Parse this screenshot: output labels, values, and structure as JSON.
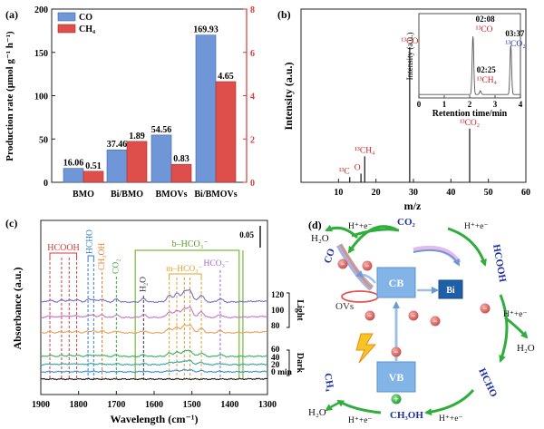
{
  "panels": {
    "a": {
      "label": "(a)"
    },
    "b": {
      "label": "(b)"
    },
    "c": {
      "label": "(c)"
    },
    "d": {
      "label": "(d)"
    }
  },
  "chart_data": [
    {
      "panel": "a",
      "type": "bar",
      "categories": [
        "BMO",
        "Bi/BMO",
        "BMOVs",
        "Bi/BMOVs"
      ],
      "series": [
        {
          "name": "CO",
          "axis": "left",
          "color": "#6f96d6",
          "values": [
            16.06,
            37.46,
            54.56,
            169.93
          ],
          "labels": [
            "16.06",
            "37.46",
            "54.56",
            "169.93"
          ]
        },
        {
          "name": "CH₄",
          "axis": "right",
          "color": "#de4f4c",
          "values": [
            0.51,
            1.89,
            0.83,
            4.65
          ],
          "labels": [
            "0.51",
            "1.89",
            "0.83",
            "4.65"
          ]
        }
      ],
      "ylabel": "Production rate (μmol g⁻¹ h⁻¹)",
      "ylim_left": [
        0,
        200
      ],
      "ylim_right": [
        0,
        8
      ],
      "yticks_left": [
        "0",
        "50",
        "100",
        "150",
        "200"
      ],
      "yticks_right": [
        "0",
        "2",
        "4",
        "6",
        "8"
      ],
      "legend_position": "top-left"
    },
    {
      "panel": "b",
      "type": "bar",
      "xlabel": "m/z",
      "ylabel": "Intensity (a.u.)",
      "xlim": [
        0,
        60
      ],
      "xticks": [
        "10",
        "20",
        "30",
        "40",
        "50",
        "60"
      ],
      "peaks": [
        {
          "x": 13,
          "h": 0.03,
          "label": "¹³C",
          "color": "#cc2222"
        },
        {
          "x": 16,
          "h": 0.05,
          "label": "O",
          "color": "#cc2222"
        },
        {
          "x": 17,
          "h": 0.15,
          "label": "¹³CH₄",
          "color": "#cc2222"
        },
        {
          "x": 29,
          "h": 0.78,
          "label": "¹³CO",
          "color": "#cc2222"
        },
        {
          "x": 45,
          "h": 0.31,
          "label": "¹³CO₂",
          "color": "#cc2222"
        }
      ],
      "inset": {
        "type": "line",
        "xlabel": "Retention time/min",
        "ylabel": "Intensity (a.u.)",
        "xlim": [
          0,
          4
        ],
        "xticks": [
          "0",
          "1",
          "2",
          "3",
          "4"
        ],
        "peaks": [
          {
            "x": 2.13,
            "h": 0.78,
            "time": "02:08",
            "label": "¹³CO",
            "color": "#cc2222"
          },
          {
            "x": 2.42,
            "h": 0.05,
            "time": "02:25",
            "label": "¹³CH₄",
            "color": "#cc2222"
          },
          {
            "x": 3.62,
            "h": 0.66,
            "time": "03:37",
            "label": "¹³CO₂",
            "color": "#2233bb"
          }
        ]
      }
    },
    {
      "panel": "c",
      "type": "line",
      "xlabel": "Wavelength (cm⁻¹)",
      "ylabel": "Absorbance (a.u.)",
      "xlim": [
        1900,
        1300
      ],
      "xticks": [
        "1900",
        "1800",
        "1700",
        "1600",
        "1500",
        "1400",
        "1300"
      ],
      "scale_bar": "0.05",
      "series": [
        {
          "name": "0 min",
          "color": "#1a1a1a"
        },
        {
          "name": "20",
          "color": "#3a8fd0"
        },
        {
          "name": "40",
          "color": "#30a7a0"
        },
        {
          "name": "60",
          "color": "#3cb05f"
        },
        {
          "name": "80",
          "color": "#e8a25a"
        },
        {
          "name": "100",
          "color": "#c477c9"
        },
        {
          "name": "120",
          "color": "#7872c4"
        }
      ],
      "groups": {
        "dark": "Dark",
        "light": "Light"
      },
      "annotations": [
        {
          "label": "HCOOH",
          "color": "#d63c3c"
        },
        {
          "label": "HCHO",
          "color": "#2e7bd6"
        },
        {
          "label": "CH₃OH",
          "color": "#ee7b26"
        },
        {
          "label": "CO₂",
          "color": "#3fa23f"
        },
        {
          "label": "H₂O",
          "color": "#333333"
        },
        {
          "label": "b–HCO₃⁻",
          "color": "#7ab83a"
        },
        {
          "label": "m–HCO₃⁻",
          "color": "#e0a030"
        },
        {
          "label": "HCO₃⁻",
          "color": "#a067d8"
        }
      ]
    }
  ],
  "diagram": {
    "cb": "CB",
    "vb": "VB",
    "bi": "Bi",
    "ovs": "OVs",
    "co2": "CO₂",
    "co": "CO",
    "hcooh": "HCOOH",
    "hcho": "HCHO",
    "ch3oh": "CH₃OH",
    "ch4": "CH₄",
    "h2o_1": "H₂O",
    "h2o_2": "H₂O",
    "h2o_3": "H₂O",
    "he_1": "H⁺+e⁻",
    "he_2": "H⁺+e⁻",
    "he_3": "H⁺+e⁻",
    "he_4": "H⁺+e⁻",
    "he_5": "H⁺+e⁻",
    "electron": "−",
    "hole": "+"
  }
}
